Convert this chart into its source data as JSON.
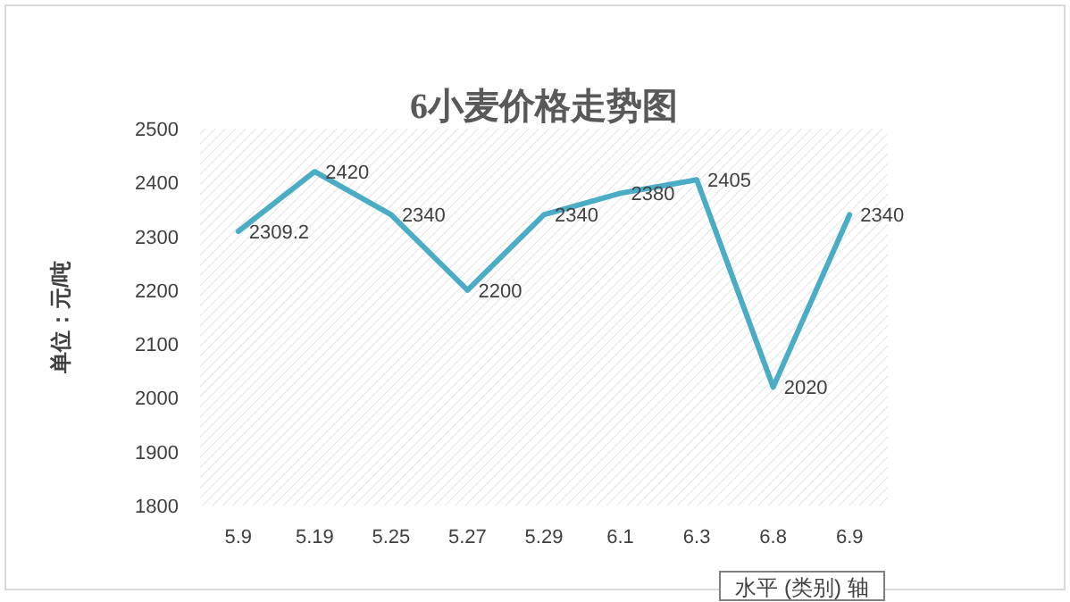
{
  "chart_data": {
    "type": "line",
    "title": "6小麦价格走势图",
    "ylabel": "单位：元/吨",
    "xlabel": "水平 (类别) 轴",
    "categories": [
      "5.9",
      "5.19",
      "5.25",
      "5.27",
      "5.29",
      "6.1",
      "6.3",
      "6.8",
      "6.9"
    ],
    "series": [
      {
        "color": "#4bacc6",
        "values": [
          2309.2,
          2420,
          2340,
          2200,
          2340,
          2380,
          2405,
          2020,
          2340
        ]
      }
    ],
    "ylim": [
      1800,
      2500
    ],
    "yticks": [
      1800,
      1900,
      2000,
      2100,
      2200,
      2300,
      2400,
      2500
    ],
    "data_labels": true,
    "grid": false,
    "marker": "none",
    "line_style": "solid"
  }
}
